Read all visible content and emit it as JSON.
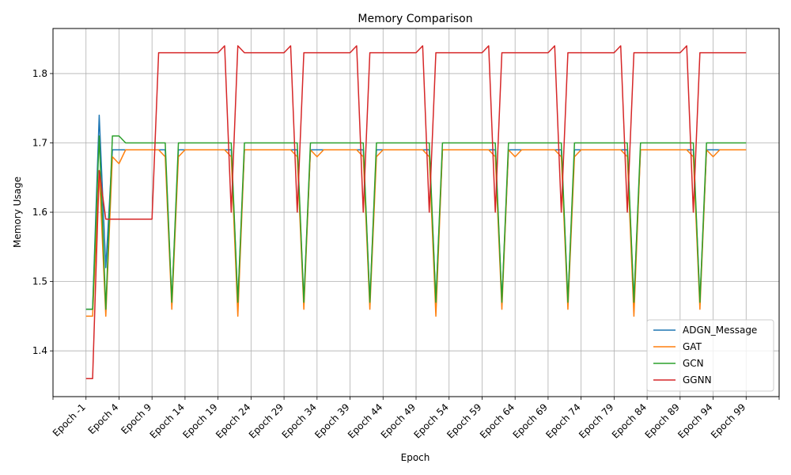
{
  "chart_data": {
    "type": "line",
    "title": "Memory Comparison",
    "xlabel": "Epoch",
    "ylabel": "Memory Usage",
    "x_tick_labels": [
      "Epoch -1",
      "Epoch 4",
      "Epoch 9",
      "Epoch 14",
      "Epoch 19",
      "Epoch 24",
      "Epoch 29",
      "Epoch 34",
      "Epoch 39",
      "Epoch 44",
      "Epoch 49",
      "Epoch 54",
      "Epoch 59",
      "Epoch 64",
      "Epoch 69",
      "Epoch 74",
      "Epoch 79",
      "Epoch 84",
      "Epoch 89",
      "Epoch 94",
      "Epoch 99"
    ],
    "x_tick_values": [
      -1,
      4,
      9,
      14,
      19,
      24,
      29,
      34,
      39,
      44,
      49,
      54,
      59,
      64,
      69,
      74,
      79,
      84,
      89,
      94,
      99
    ],
    "xlim": [
      -6,
      104
    ],
    "ylim": [
      1.334,
      1.865
    ],
    "y_ticks": [
      1.4,
      1.5,
      1.6,
      1.7,
      1.8
    ],
    "y_tick_labels": [
      "1.4",
      "1.5",
      "1.6",
      "1.7",
      "1.8"
    ],
    "grid": true,
    "legend_position": "lower right",
    "x": [
      -1,
      0,
      1,
      2,
      3,
      4,
      5,
      6,
      7,
      8,
      9,
      10,
      11,
      12,
      13,
      14,
      15,
      16,
      17,
      18,
      19,
      20,
      21,
      22,
      23,
      24,
      25,
      26,
      27,
      28,
      29,
      30,
      31,
      32,
      33,
      34,
      35,
      36,
      37,
      38,
      39,
      40,
      41,
      42,
      43,
      44,
      45,
      46,
      47,
      48,
      49,
      50,
      51,
      52,
      53,
      54,
      55,
      56,
      57,
      58,
      59,
      60,
      61,
      62,
      63,
      64,
      65,
      66,
      67,
      68,
      69,
      70,
      71,
      72,
      73,
      74,
      75,
      76,
      77,
      78,
      79,
      80,
      81,
      82,
      83,
      84,
      85,
      86,
      87,
      88,
      89,
      90,
      91,
      92,
      93,
      94,
      95,
      96,
      97,
      98,
      99
    ],
    "series": [
      {
        "name": "ADGN_Message",
        "color": "#1f77b4",
        "values": [
          1.46,
          1.46,
          1.74,
          1.52,
          1.69,
          1.69,
          1.69,
          1.69,
          1.69,
          1.69,
          1.69,
          1.69,
          1.69,
          1.47,
          1.69,
          1.69,
          1.69,
          1.69,
          1.69,
          1.69,
          1.69,
          1.69,
          1.69,
          1.47,
          1.69,
          1.69,
          1.69,
          1.69,
          1.69,
          1.69,
          1.69,
          1.69,
          1.69,
          1.47,
          1.69,
          1.69,
          1.69,
          1.69,
          1.69,
          1.69,
          1.69,
          1.69,
          1.69,
          1.47,
          1.69,
          1.69,
          1.69,
          1.69,
          1.69,
          1.69,
          1.69,
          1.69,
          1.69,
          1.47,
          1.69,
          1.69,
          1.69,
          1.69,
          1.69,
          1.69,
          1.69,
          1.69,
          1.69,
          1.47,
          1.69,
          1.69,
          1.69,
          1.69,
          1.69,
          1.69,
          1.69,
          1.69,
          1.69,
          1.47,
          1.69,
          1.69,
          1.69,
          1.69,
          1.69,
          1.69,
          1.69,
          1.69,
          1.69,
          1.47,
          1.69,
          1.69,
          1.69,
          1.69,
          1.69,
          1.69,
          1.69,
          1.69,
          1.69,
          1.47,
          1.69,
          1.69,
          1.69,
          1.69,
          1.69,
          1.69,
          1.69
        ]
      },
      {
        "name": "GAT",
        "color": "#ff7f0e",
        "values": [
          1.45,
          1.45,
          1.66,
          1.45,
          1.68,
          1.67,
          1.69,
          1.69,
          1.69,
          1.69,
          1.69,
          1.69,
          1.68,
          1.46,
          1.68,
          1.69,
          1.69,
          1.69,
          1.69,
          1.69,
          1.69,
          1.69,
          1.68,
          1.45,
          1.69,
          1.69,
          1.69,
          1.69,
          1.69,
          1.69,
          1.69,
          1.69,
          1.68,
          1.46,
          1.69,
          1.68,
          1.69,
          1.69,
          1.69,
          1.69,
          1.69,
          1.69,
          1.68,
          1.46,
          1.68,
          1.69,
          1.69,
          1.69,
          1.69,
          1.69,
          1.69,
          1.69,
          1.68,
          1.45,
          1.69,
          1.69,
          1.69,
          1.69,
          1.69,
          1.69,
          1.69,
          1.69,
          1.68,
          1.46,
          1.69,
          1.68,
          1.69,
          1.69,
          1.69,
          1.69,
          1.69,
          1.69,
          1.68,
          1.46,
          1.68,
          1.69,
          1.69,
          1.69,
          1.69,
          1.69,
          1.69,
          1.69,
          1.68,
          1.45,
          1.69,
          1.69,
          1.69,
          1.69,
          1.69,
          1.69,
          1.69,
          1.69,
          1.68,
          1.46,
          1.69,
          1.68,
          1.69,
          1.69,
          1.69,
          1.69,
          1.69
        ]
      },
      {
        "name": "GCN",
        "color": "#2ca02c",
        "values": [
          1.46,
          1.46,
          1.71,
          1.46,
          1.71,
          1.71,
          1.7,
          1.7,
          1.7,
          1.7,
          1.7,
          1.7,
          1.7,
          1.47,
          1.7,
          1.7,
          1.7,
          1.7,
          1.7,
          1.7,
          1.7,
          1.7,
          1.7,
          1.47,
          1.7,
          1.7,
          1.7,
          1.7,
          1.7,
          1.7,
          1.7,
          1.7,
          1.7,
          1.47,
          1.7,
          1.7,
          1.7,
          1.7,
          1.7,
          1.7,
          1.7,
          1.7,
          1.7,
          1.47,
          1.7,
          1.7,
          1.7,
          1.7,
          1.7,
          1.7,
          1.7,
          1.7,
          1.7,
          1.47,
          1.7,
          1.7,
          1.7,
          1.7,
          1.7,
          1.7,
          1.7,
          1.7,
          1.7,
          1.47,
          1.7,
          1.7,
          1.7,
          1.7,
          1.7,
          1.7,
          1.7,
          1.7,
          1.7,
          1.47,
          1.7,
          1.7,
          1.7,
          1.7,
          1.7,
          1.7,
          1.7,
          1.7,
          1.7,
          1.47,
          1.7,
          1.7,
          1.7,
          1.7,
          1.7,
          1.7,
          1.7,
          1.7,
          1.7,
          1.47,
          1.7,
          1.7,
          1.7,
          1.7,
          1.7,
          1.7,
          1.7
        ]
      },
      {
        "name": "GGNN",
        "color": "#d62728",
        "values": [
          1.36,
          1.36,
          1.66,
          1.59,
          1.59,
          1.59,
          1.59,
          1.59,
          1.59,
          1.59,
          1.59,
          1.83,
          1.83,
          1.83,
          1.83,
          1.83,
          1.83,
          1.83,
          1.83,
          1.83,
          1.83,
          1.84,
          1.6,
          1.84,
          1.83,
          1.83,
          1.83,
          1.83,
          1.83,
          1.83,
          1.83,
          1.84,
          1.6,
          1.83,
          1.83,
          1.83,
          1.83,
          1.83,
          1.83,
          1.83,
          1.83,
          1.84,
          1.6,
          1.83,
          1.83,
          1.83,
          1.83,
          1.83,
          1.83,
          1.83,
          1.83,
          1.84,
          1.6,
          1.83,
          1.83,
          1.83,
          1.83,
          1.83,
          1.83,
          1.83,
          1.83,
          1.84,
          1.6,
          1.83,
          1.83,
          1.83,
          1.83,
          1.83,
          1.83,
          1.83,
          1.83,
          1.84,
          1.6,
          1.83,
          1.83,
          1.83,
          1.83,
          1.83,
          1.83,
          1.83,
          1.83,
          1.84,
          1.6,
          1.83,
          1.83,
          1.83,
          1.83,
          1.83,
          1.83,
          1.83,
          1.83,
          1.84,
          1.6,
          1.83,
          1.83,
          1.83,
          1.83,
          1.83,
          1.83,
          1.83,
          1.83
        ]
      }
    ]
  }
}
